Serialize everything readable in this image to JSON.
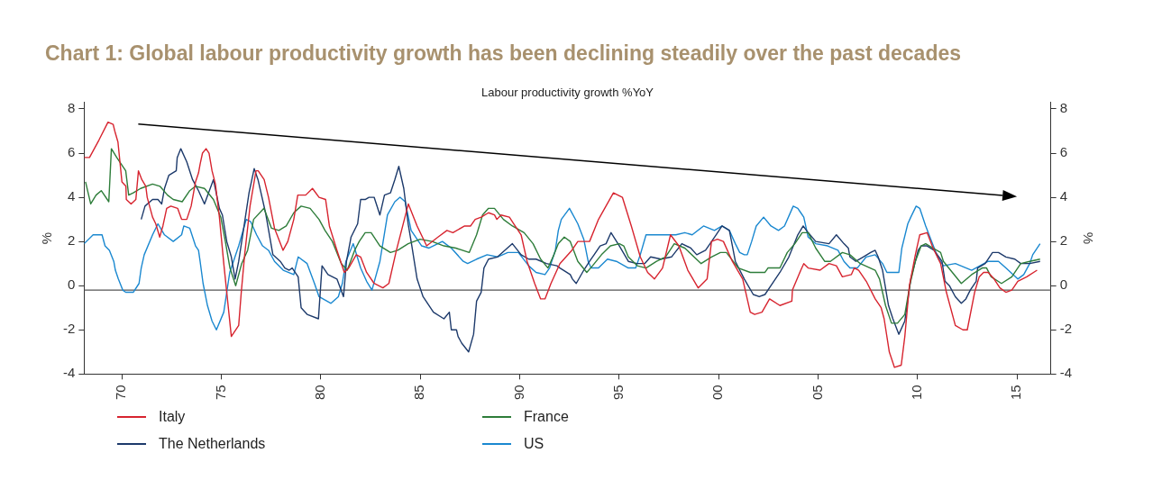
{
  "chart_data": {
    "type": "line",
    "title": "Chart 1: Global labour productivity growth has been declining steadily over the past decades",
    "subtitle": "Labour productivity growth %YoY",
    "ylabel": "%",
    "y2label": "%",
    "xlim": [
      1968.1,
      2016.7
    ],
    "xticks": [
      {
        "value": 1970,
        "label": "70"
      },
      {
        "value": 1975,
        "label": "75"
      },
      {
        "value": 1980,
        "label": "80"
      },
      {
        "value": 1985,
        "label": "85"
      },
      {
        "value": 1990,
        "label": "90"
      },
      {
        "value": 1995,
        "label": "95"
      },
      {
        "value": 2000,
        "label": "00"
      },
      {
        "value": 2005,
        "label": "05"
      },
      {
        "value": 2010,
        "label": "10"
      },
      {
        "value": 2015,
        "label": "15"
      }
    ],
    "ylim": [
      -4,
      8.3
    ],
    "yticks": [
      -4,
      -2,
      0,
      2,
      4,
      6,
      8
    ],
    "y2lim": [
      -4,
      8.3
    ],
    "y2ticks": [
      -4,
      -2,
      0,
      2,
      4,
      6,
      8
    ],
    "grid": false,
    "legend": "bottom",
    "ref_lines": [
      {
        "axis": "y",
        "value": -0.2,
        "color": "#555555"
      }
    ],
    "series": [
      {
        "name": "Italy",
        "color": "#d7242f",
        "x": [
          1968.1,
          1968.37,
          1968.85,
          1969.3,
          1969.56,
          1969.64,
          1969.8,
          1970.0,
          1970.2,
          1970.22,
          1970.46,
          1970.7,
          1970.83,
          1971.0,
          1971.2,
          1971.27,
          1971.54,
          1971.7,
          1971.9,
          1972.06,
          1972.25,
          1972.46,
          1972.8,
          1973.0,
          1973.26,
          1973.48,
          1973.7,
          1973.85,
          1973.93,
          1974.05,
          1974.23,
          1974.38,
          1974.53,
          1974.7,
          1974.9,
          1975.12,
          1975.5,
          1975.87,
          1976.0,
          1976.17,
          1976.44,
          1976.74,
          1976.85,
          1977.15,
          1977.37,
          1977.67,
          1978.1,
          1978.34,
          1978.64,
          1978.84,
          1979.24,
          1979.58,
          1979.91,
          1980.24,
          1980.43,
          1980.81,
          1981.18,
          1981.4,
          1981.78,
          1982.0,
          1982.3,
          1982.68,
          1983.12,
          1983.42,
          1983.8,
          1984.4,
          1984.84,
          1985.32,
          1985.89,
          1986.34,
          1986.64,
          1987.23,
          1987.53,
          1987.76,
          1988.06,
          1988.43,
          1988.73,
          1988.85,
          1989.06,
          1989.48,
          1989.7,
          1990.07,
          1990.37,
          1990.75,
          1991.05,
          1991.27,
          1991.57,
          1992.02,
          1992.62,
          1992.92,
          1993.51,
          1993.96,
          1994.71,
          1995.16,
          1995.61,
          1996.06,
          1996.43,
          1996.77,
          1997.18,
          1997.58,
          1998.0,
          1998.45,
          1998.97,
          1999.42,
          1999.64,
          1999.94,
          2000.24,
          2000.69,
          2001.21,
          2001.59,
          2001.81,
          2002.18,
          2002.56,
          2003.08,
          2003.68,
          2003.71,
          2004.13,
          2004.28,
          2004.5,
          2005.1,
          2005.55,
          2005.92,
          2006.22,
          2006.67,
          2006.82,
          2007.04,
          2007.42,
          2007.87,
          2008.17,
          2008.32,
          2008.58,
          2008.84,
          2009.18,
          2009.36,
          2009.59,
          2009.89,
          2010.11,
          2010.48,
          2010.78,
          2011.16,
          2011.45,
          2011.9,
          2012.28,
          2012.5,
          2012.87,
          2013.1,
          2013.32,
          2013.55,
          2013.85,
          2014.14,
          2014.44,
          2014.74,
          2015.04,
          2015.49,
          2016.01
        ],
        "values": [
          5.8,
          5.8,
          6.6,
          7.4,
          7.3,
          7.0,
          6.5,
          4.7,
          4.5,
          3.9,
          3.7,
          3.9,
          5.2,
          4.8,
          4.5,
          4.0,
          3.1,
          2.8,
          2.2,
          2.7,
          3.5,
          3.6,
          3.5,
          3.0,
          3.0,
          3.6,
          4.7,
          5.1,
          5.5,
          6.0,
          6.2,
          6.0,
          5.2,
          4.6,
          3.1,
          1.0,
          -2.3,
          -1.8,
          -0.3,
          1.4,
          3.6,
          5.2,
          5.2,
          4.8,
          4.0,
          2.6,
          1.6,
          2.0,
          3.0,
          4.1,
          4.1,
          4.4,
          4.0,
          3.9,
          2.7,
          1.6,
          0.6,
          0.8,
          1.4,
          1.3,
          0.6,
          0.1,
          -0.1,
          0.1,
          1.6,
          3.7,
          2.7,
          1.8,
          2.2,
          2.5,
          2.4,
          2.7,
          2.7,
          3.0,
          3.1,
          3.3,
          3.2,
          3.0,
          3.2,
          3.1,
          2.8,
          2.3,
          1.1,
          0.1,
          -0.6,
          -0.6,
          0.1,
          1.0,
          1.6,
          2.0,
          2.0,
          3.0,
          4.2,
          4.0,
          2.7,
          1.3,
          0.6,
          0.3,
          0.8,
          2.3,
          1.8,
          0.7,
          -0.1,
          0.3,
          2.0,
          2.1,
          2.0,
          1.1,
          0.3,
          -1.2,
          -1.3,
          -1.2,
          -0.6,
          -0.9,
          -0.7,
          -0.2,
          0.7,
          1.0,
          0.8,
          0.7,
          1.0,
          0.9,
          0.4,
          0.5,
          0.8,
          0.7,
          0.2,
          -0.6,
          -1.0,
          -1.5,
          -3.0,
          -3.7,
          -3.6,
          -2.3,
          0.0,
          1.4,
          2.3,
          2.4,
          1.7,
          1.0,
          -0.3,
          -1.8,
          -2.0,
          -2.0,
          -0.3,
          0.4,
          0.6,
          0.6,
          0.3,
          -0.1,
          -0.3,
          -0.2,
          0.2,
          0.4,
          0.7
        ]
      },
      {
        "name": "France",
        "color": "#2e7d3a",
        "x": [
          1968.17,
          1968.43,
          1968.7,
          1968.96,
          1969.34,
          1969.47,
          1969.74,
          1970.19,
          1970.34,
          1970.57,
          1970.94,
          1971.54,
          1971.91,
          1972.29,
          1972.58,
          1973.03,
          1973.41,
          1973.7,
          1974.15,
          1974.6,
          1974.97,
          1975.2,
          1975.43,
          1975.72,
          1976.02,
          1976.32,
          1976.62,
          1977.14,
          1977.52,
          1977.89,
          1978.26,
          1978.64,
          1979.01,
          1979.46,
          1979.91,
          1980.21,
          1980.58,
          1981.03,
          1981.33,
          1981.7,
          1981.93,
          1982.23,
          1982.53,
          1982.97,
          1983.5,
          1983.87,
          1984.39,
          1984.99,
          1985.59,
          1986.19,
          1986.79,
          1987.46,
          1987.83,
          1988.13,
          1988.43,
          1988.73,
          1989.18,
          1989.63,
          1990.22,
          1990.67,
          1991.05,
          1991.42,
          1991.72,
          1991.94,
          1992.24,
          1992.54,
          1992.92,
          1993.37,
          1993.66,
          1994.11,
          1994.56,
          1995.01,
          1995.23,
          1995.46,
          1995.91,
          1996.35,
          1996.88,
          1997.33,
          1997.77,
          1998.3,
          1999.12,
          1999.64,
          2000.09,
          2000.39,
          2000.99,
          2001.59,
          2001.96,
          2002.33,
          2002.48,
          2002.78,
          2003.08,
          2003.45,
          2003.83,
          2004.2,
          2004.5,
          2004.88,
          2005.33,
          2005.62,
          2006.22,
          2006.6,
          2007.12,
          2007.87,
          2008.09,
          2008.39,
          2008.69,
          2008.99,
          2009.36,
          2009.63,
          2009.89,
          2010.18,
          2010.41,
          2010.78,
          2011.16,
          2011.3,
          2011.75,
          2012.2,
          2012.72,
          2013.25,
          2013.47,
          2013.7,
          2014.22,
          2014.74,
          2015.19,
          2015.64,
          2016.16
        ],
        "values": [
          4.7,
          3.7,
          4.1,
          4.3,
          3.8,
          6.2,
          5.8,
          5.2,
          4.1,
          4.2,
          4.4,
          4.6,
          4.5,
          4.1,
          3.9,
          3.8,
          4.3,
          4.5,
          4.4,
          3.9,
          3.1,
          2.0,
          0.8,
          0.0,
          1.0,
          1.6,
          3.0,
          3.5,
          2.6,
          2.5,
          2.7,
          3.3,
          3.6,
          3.5,
          3.0,
          2.5,
          2.0,
          1.0,
          0.7,
          1.6,
          2.0,
          2.4,
          2.4,
          1.8,
          1.5,
          1.6,
          1.9,
          2.1,
          2.0,
          1.8,
          1.7,
          1.5,
          2.3,
          3.2,
          3.5,
          3.5,
          3.0,
          2.7,
          2.4,
          1.9,
          1.2,
          0.8,
          1.4,
          1.9,
          2.2,
          2.0,
          1.1,
          0.6,
          0.9,
          1.4,
          1.8,
          1.9,
          1.8,
          1.3,
          0.9,
          0.8,
          1.1,
          1.3,
          1.9,
          1.7,
          1.0,
          1.3,
          1.5,
          1.5,
          0.8,
          0.6,
          0.6,
          0.6,
          0.8,
          0.8,
          0.8,
          1.5,
          1.9,
          2.4,
          2.4,
          1.7,
          1.1,
          1.1,
          1.5,
          1.4,
          1.0,
          0.7,
          0.3,
          -0.9,
          -1.7,
          -1.7,
          -1.3,
          0.1,
          1.1,
          1.8,
          1.9,
          1.7,
          1.5,
          1.1,
          0.6,
          0.1,
          0.5,
          0.8,
          0.8,
          0.4,
          0.1,
          0.4,
          1.0,
          1.1,
          1.2
        ]
      },
      {
        "name": "The Netherlands",
        "color": "#1d3a6b",
        "x": [
          1970.97,
          1971.16,
          1971.54,
          1971.81,
          1972.0,
          1972.14,
          1972.36,
          1972.73,
          1972.78,
          1972.96,
          1973.26,
          1973.55,
          1973.85,
          1974.15,
          1974.6,
          1974.9,
          1975.05,
          1975.27,
          1975.5,
          1975.69,
          1975.87,
          1976.14,
          1976.39,
          1976.65,
          1976.84,
          1977.22,
          1977.59,
          1977.96,
          1978.19,
          1978.41,
          1978.56,
          1978.86,
          1979.01,
          1979.31,
          1979.88,
          1980.06,
          1980.36,
          1980.81,
          1981.14,
          1981.29,
          1981.52,
          1981.85,
          1982.0,
          1982.23,
          1982.42,
          1982.68,
          1982.97,
          1983.2,
          1983.5,
          1983.72,
          1983.92,
          1984.17,
          1984.39,
          1984.54,
          1984.84,
          1985.14,
          1985.66,
          1986.19,
          1986.46,
          1986.56,
          1986.82,
          1986.9,
          1987.08,
          1987.43,
          1987.68,
          1987.83,
          1988.06,
          1988.2,
          1988.43,
          1988.88,
          1989.63,
          1990.07,
          1990.45,
          1990.82,
          1991.34,
          1991.87,
          1992.02,
          1992.54,
          1992.65,
          1992.84,
          1993.22,
          1993.51,
          1993.74,
          1994.04,
          1994.34,
          1994.59,
          1995.01,
          1995.46,
          1995.88,
          1996.28,
          1996.58,
          1997.1,
          1997.63,
          1998.15,
          1998.6,
          1998.9,
          1999.34,
          1999.49,
          1999.87,
          2000.17,
          2000.54,
          2000.84,
          2001.29,
          2001.74,
          2002.04,
          2002.33,
          2002.63,
          2003.08,
          2003.53,
          2003.98,
          2004.25,
          2004.5,
          2004.88,
          2005.55,
          2005.92,
          2006.3,
          2006.52,
          2006.6,
          2006.9,
          2007.27,
          2007.64,
          2007.87,
          2008.02,
          2008.24,
          2008.54,
          2008.76,
          2009.06,
          2009.36,
          2009.66,
          2010.03,
          2010.18,
          2010.48,
          2010.83,
          2011.23,
          2011.38,
          2011.6,
          2011.9,
          2012.2,
          2012.43,
          2012.65,
          2012.95,
          2013.02,
          2013.4,
          2013.77,
          2014.07,
          2014.44,
          2014.89,
          2015.19,
          2015.64,
          2016.16
        ],
        "values": [
          3.0,
          3.6,
          3.9,
          3.9,
          3.7,
          4.4,
          5.0,
          5.2,
          5.8,
          6.2,
          5.6,
          4.8,
          4.3,
          3.7,
          4.8,
          3.5,
          3.2,
          2.0,
          1.3,
          0.3,
          1.1,
          2.7,
          4.2,
          5.3,
          4.8,
          3.3,
          1.4,
          1.1,
          0.8,
          0.7,
          0.8,
          0.4,
          -1.0,
          -1.3,
          -1.5,
          0.9,
          0.5,
          0.3,
          -0.5,
          1.1,
          2.2,
          2.8,
          3.9,
          3.9,
          4.0,
          4.0,
          3.2,
          4.1,
          4.2,
          4.8,
          5.4,
          4.4,
          2.8,
          2.0,
          0.3,
          -0.5,
          -1.2,
          -1.5,
          -1.2,
          -2.0,
          -2.0,
          -2.3,
          -2.6,
          -3.0,
          -2.2,
          -0.7,
          -0.3,
          0.8,
          1.2,
          1.3,
          1.9,
          1.4,
          1.2,
          1.2,
          1.0,
          0.9,
          0.8,
          0.5,
          0.3,
          0.1,
          0.7,
          1.1,
          1.4,
          1.8,
          1.9,
          2.4,
          1.8,
          1.1,
          1.0,
          1.0,
          1.3,
          1.2,
          1.3,
          1.9,
          1.7,
          1.4,
          1.6,
          1.8,
          2.3,
          2.7,
          2.5,
          1.1,
          0.3,
          -0.4,
          -0.5,
          -0.4,
          0.0,
          0.6,
          1.3,
          2.3,
          2.7,
          2.4,
          2.0,
          1.9,
          2.3,
          1.9,
          1.7,
          1.3,
          1.1,
          1.3,
          1.5,
          1.6,
          1.3,
          0.7,
          -0.9,
          -1.5,
          -2.2,
          -1.6,
          0.3,
          1.6,
          1.8,
          1.8,
          1.6,
          1.1,
          0.2,
          0.0,
          -0.5,
          -0.8,
          -0.6,
          -0.2,
          0.2,
          0.8,
          1.0,
          1.5,
          1.5,
          1.3,
          1.2,
          1.0,
          1.0,
          1.1
        ]
      },
      {
        "name": "US",
        "color": "#1a88d0",
        "x": [
          1968.1,
          1968.55,
          1969.0,
          1969.15,
          1969.37,
          1969.59,
          1969.67,
          1969.82,
          1970.04,
          1970.19,
          1970.57,
          1970.86,
          1970.97,
          1971.12,
          1971.54,
          1971.81,
          1972.14,
          1972.58,
          1973.0,
          1973.11,
          1973.41,
          1973.7,
          1973.85,
          1973.93,
          1974.08,
          1974.3,
          1974.53,
          1974.75,
          1975.12,
          1975.42,
          1975.87,
          1976.25,
          1976.47,
          1976.77,
          1977.07,
          1977.37,
          1977.67,
          1978.11,
          1978.64,
          1978.86,
          1979.31,
          1979.68,
          1979.91,
          1980.51,
          1980.88,
          1981.08,
          1981.26,
          1981.63,
          1982.0,
          1982.3,
          1982.57,
          1982.97,
          1983.35,
          1983.72,
          1983.98,
          1984.24,
          1984.54,
          1985.07,
          1985.44,
          1986.11,
          1986.56,
          1987.16,
          1987.38,
          1987.83,
          1988.36,
          1988.88,
          1989.4,
          1989.93,
          1990.45,
          1990.82,
          1991.27,
          1991.5,
          1991.79,
          1991.94,
          1992.09,
          1992.5,
          1992.92,
          1993.22,
          1993.44,
          1993.59,
          1993.96,
          1994.41,
          1994.86,
          1995.46,
          1995.83,
          1996.06,
          1996.35,
          1996.95,
          1997.85,
          1998.3,
          1998.67,
          1999.24,
          1999.79,
          2000.17,
          2000.54,
          2000.84,
          2001.06,
          2001.29,
          2001.44,
          2001.66,
          2001.89,
          2002.26,
          2002.63,
          2003.01,
          2003.31,
          2003.75,
          2003.98,
          2004.13,
          2004.28,
          2004.5,
          2004.88,
          2005.48,
          2006.0,
          2006.3,
          2006.6,
          2006.97,
          2007.42,
          2007.87,
          2008.24,
          2008.46,
          2009.06,
          2009.21,
          2009.51,
          2009.66,
          2009.93,
          2010.11,
          2010.41,
          2010.71,
          2011.01,
          2011.3,
          2011.9,
          2012.72,
          2013.55,
          2014.07,
          2014.44,
          2015.04,
          2015.34,
          2015.64,
          2015.79,
          2016.16
        ],
        "values": [
          1.9,
          2.3,
          2.3,
          1.8,
          1.6,
          1.1,
          0.7,
          0.3,
          -0.2,
          -0.3,
          -0.3,
          0.1,
          0.8,
          1.4,
          2.3,
          2.8,
          2.3,
          2.0,
          2.3,
          2.7,
          2.6,
          1.8,
          1.6,
          1.1,
          0.1,
          -0.9,
          -1.6,
          -2.0,
          -1.2,
          0.6,
          1.8,
          3.0,
          2.9,
          2.3,
          1.8,
          1.6,
          1.1,
          0.7,
          0.5,
          1.3,
          1.0,
          0.1,
          -0.5,
          -0.8,
          -0.5,
          0.1,
          1.1,
          1.9,
          0.8,
          0.2,
          -0.2,
          1.1,
          3.2,
          3.8,
          4.0,
          3.8,
          2.5,
          1.8,
          1.7,
          2.0,
          1.7,
          1.1,
          1.0,
          1.2,
          1.4,
          1.3,
          1.5,
          1.5,
          0.9,
          0.6,
          0.5,
          0.8,
          1.6,
          2.5,
          3.0,
          3.5,
          2.8,
          2.1,
          1.1,
          0.8,
          0.8,
          1.2,
          1.1,
          0.8,
          0.8,
          1.4,
          2.3,
          2.3,
          2.3,
          2.4,
          2.3,
          2.7,
          2.5,
          2.7,
          2.5,
          1.9,
          1.5,
          1.4,
          1.4,
          2.0,
          2.7,
          3.1,
          2.7,
          2.5,
          2.7,
          3.6,
          3.5,
          3.3,
          3.1,
          2.2,
          1.9,
          1.8,
          1.6,
          1.1,
          0.8,
          0.8,
          1.3,
          1.4,
          1.0,
          0.6,
          0.6,
          1.7,
          2.8,
          3.1,
          3.6,
          3.5,
          2.7,
          2.0,
          1.3,
          0.9,
          1.0,
          0.7,
          1.1,
          1.1,
          0.8,
          0.3,
          0.5,
          1.0,
          1.4,
          1.9
        ]
      }
    ]
  }
}
